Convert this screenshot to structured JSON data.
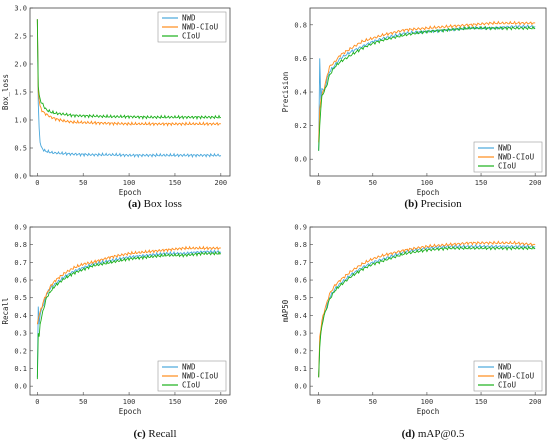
{
  "colors": {
    "NWD": "#4aa8dc",
    "NWD-CIoU": "#ff8c1a",
    "CIoU": "#1bb01b"
  },
  "chart_data": [
    {
      "type": "line",
      "caption_label": "(a)",
      "caption_text": " Box loss",
      "xlabel": "Epoch",
      "ylabel": "Box_loss",
      "xlim": [
        -8,
        210
      ],
      "ylim": [
        0,
        3.0
      ],
      "xticks": [
        "0",
        "50",
        "100",
        "150",
        "200"
      ],
      "yticks": [
        "0.0",
        "0.5",
        "1.0",
        "1.5",
        "2.0",
        "2.5",
        "3.0"
      ],
      "legend_position": "top-right",
      "series": [
        {
          "name": "NWD",
          "x": [
            0,
            1,
            2,
            3,
            4,
            6,
            8,
            10,
            15,
            20,
            30,
            40,
            60,
            80,
            100,
            120,
            150,
            180,
            200
          ],
          "y": [
            2.8,
            1.3,
            0.85,
            0.6,
            0.52,
            0.48,
            0.45,
            0.44,
            0.42,
            0.41,
            0.4,
            0.39,
            0.38,
            0.38,
            0.37,
            0.37,
            0.37,
            0.37,
            0.37
          ]
        },
        {
          "name": "NWD-CIoU",
          "x": [
            0,
            1,
            2,
            3,
            4,
            6,
            8,
            10,
            15,
            20,
            30,
            40,
            60,
            80,
            100,
            120,
            150,
            180,
            200
          ],
          "y": [
            2.8,
            1.5,
            1.35,
            1.25,
            1.2,
            1.15,
            1.12,
            1.1,
            1.05,
            1.02,
            0.98,
            0.96,
            0.95,
            0.94,
            0.93,
            0.93,
            0.93,
            0.93,
            0.93
          ]
        },
        {
          "name": "CIoU",
          "x": [
            0,
            1,
            2,
            3,
            4,
            6,
            8,
            10,
            15,
            20,
            30,
            40,
            60,
            80,
            100,
            120,
            150,
            180,
            200
          ],
          "y": [
            2.8,
            1.6,
            1.45,
            1.38,
            1.32,
            1.28,
            1.22,
            1.18,
            1.14,
            1.12,
            1.1,
            1.08,
            1.07,
            1.06,
            1.06,
            1.05,
            1.05,
            1.05,
            1.05
          ]
        }
      ]
    },
    {
      "type": "line",
      "caption_label": "(b)",
      "caption_text": " Precision",
      "xlabel": "Epoch",
      "ylabel": "Precision",
      "xlim": [
        -8,
        210
      ],
      "ylim": [
        -0.1,
        0.9
      ],
      "xticks": [
        "0",
        "50",
        "100",
        "150",
        "200"
      ],
      "yticks": [
        "0.0",
        "0.2",
        "0.4",
        "0.6",
        "0.8"
      ],
      "legend_position": "bottom-right",
      "series": [
        {
          "name": "NWD",
          "x": [
            0,
            1,
            2,
            3,
            5,
            8,
            10,
            15,
            20,
            30,
            40,
            50,
            60,
            80,
            100,
            120,
            140,
            160,
            180,
            200
          ],
          "y": [
            0.05,
            0.6,
            0.35,
            0.42,
            0.4,
            0.48,
            0.52,
            0.56,
            0.6,
            0.64,
            0.67,
            0.7,
            0.72,
            0.75,
            0.76,
            0.77,
            0.78,
            0.78,
            0.79,
            0.79
          ]
        },
        {
          "name": "NWD-CIoU",
          "x": [
            0,
            1,
            2,
            3,
            5,
            8,
            10,
            15,
            20,
            30,
            40,
            50,
            60,
            80,
            100,
            120,
            140,
            160,
            180,
            200
          ],
          "y": [
            0.1,
            0.3,
            0.35,
            0.38,
            0.42,
            0.5,
            0.55,
            0.58,
            0.62,
            0.66,
            0.7,
            0.72,
            0.74,
            0.77,
            0.78,
            0.79,
            0.8,
            0.81,
            0.81,
            0.81
          ]
        },
        {
          "name": "CIoU",
          "x": [
            0,
            1,
            2,
            3,
            5,
            8,
            10,
            15,
            20,
            30,
            40,
            50,
            60,
            80,
            100,
            120,
            140,
            160,
            180,
            200
          ],
          "y": [
            0.05,
            0.2,
            0.3,
            0.38,
            0.4,
            0.45,
            0.5,
            0.55,
            0.58,
            0.62,
            0.66,
            0.69,
            0.71,
            0.74,
            0.76,
            0.77,
            0.78,
            0.78,
            0.78,
            0.78
          ]
        }
      ]
    },
    {
      "type": "line",
      "caption_label": "(c)",
      "caption_text": " Recall",
      "xlabel": "Epoch",
      "ylabel": "Recall",
      "xlim": [
        -8,
        210
      ],
      "ylim": [
        -0.05,
        0.9
      ],
      "xticks": [
        "0",
        "50",
        "100",
        "150",
        "200"
      ],
      "yticks": [
        "0.0",
        "0.1",
        "0.2",
        "0.3",
        "0.4",
        "0.5",
        "0.6",
        "0.7",
        "0.8",
        "0.9"
      ],
      "legend_position": "bottom-right",
      "series": [
        {
          "name": "NWD",
          "x": [
            0,
            1,
            2,
            3,
            5,
            8,
            10,
            15,
            20,
            30,
            40,
            50,
            60,
            80,
            100,
            120,
            140,
            160,
            180,
            200
          ],
          "y": [
            0.05,
            0.45,
            0.35,
            0.4,
            0.44,
            0.48,
            0.52,
            0.56,
            0.58,
            0.62,
            0.65,
            0.67,
            0.69,
            0.71,
            0.73,
            0.74,
            0.75,
            0.75,
            0.76,
            0.76
          ]
        },
        {
          "name": "NWD-CIoU",
          "x": [
            0,
            1,
            2,
            3,
            5,
            8,
            10,
            15,
            20,
            30,
            40,
            50,
            60,
            80,
            100,
            120,
            140,
            160,
            180,
            200
          ],
          "y": [
            0.35,
            0.38,
            0.4,
            0.42,
            0.45,
            0.5,
            0.52,
            0.57,
            0.6,
            0.64,
            0.67,
            0.69,
            0.7,
            0.73,
            0.75,
            0.76,
            0.77,
            0.78,
            0.78,
            0.78
          ]
        },
        {
          "name": "CIoU",
          "x": [
            0,
            1,
            2,
            3,
            5,
            8,
            10,
            15,
            20,
            30,
            40,
            50,
            60,
            80,
            100,
            120,
            140,
            160,
            180,
            200
          ],
          "y": [
            0.04,
            0.3,
            0.28,
            0.35,
            0.4,
            0.46,
            0.5,
            0.54,
            0.57,
            0.61,
            0.64,
            0.66,
            0.68,
            0.7,
            0.72,
            0.73,
            0.74,
            0.74,
            0.75,
            0.75
          ]
        }
      ]
    },
    {
      "type": "line",
      "caption_label": "(d)",
      "caption_text": " mAP@0.5",
      "xlabel": "Epoch",
      "ylabel": "mAP50",
      "xlim": [
        -8,
        210
      ],
      "ylim": [
        -0.05,
        0.9
      ],
      "xticks": [
        "0",
        "50",
        "100",
        "150",
        "200"
      ],
      "yticks": [
        "0.0",
        "0.1",
        "0.2",
        "0.3",
        "0.4",
        "0.5",
        "0.6",
        "0.7",
        "0.8",
        "0.9"
      ],
      "legend_position": "bottom-right",
      "series": [
        {
          "name": "NWD",
          "x": [
            0,
            1,
            2,
            3,
            5,
            8,
            10,
            15,
            20,
            30,
            40,
            50,
            60,
            80,
            100,
            120,
            140,
            160,
            180,
            200
          ],
          "y": [
            0.05,
            0.25,
            0.3,
            0.35,
            0.4,
            0.46,
            0.5,
            0.55,
            0.58,
            0.63,
            0.67,
            0.7,
            0.72,
            0.76,
            0.78,
            0.79,
            0.79,
            0.79,
            0.79,
            0.79
          ]
        },
        {
          "name": "NWD-CIoU",
          "x": [
            0,
            1,
            2,
            3,
            5,
            8,
            10,
            15,
            20,
            30,
            40,
            50,
            60,
            80,
            100,
            120,
            140,
            160,
            180,
            200
          ],
          "y": [
            0.05,
            0.28,
            0.32,
            0.37,
            0.42,
            0.48,
            0.52,
            0.57,
            0.6,
            0.65,
            0.69,
            0.72,
            0.74,
            0.77,
            0.79,
            0.8,
            0.81,
            0.81,
            0.81,
            0.8
          ]
        },
        {
          "name": "CIoU",
          "x": [
            0,
            1,
            2,
            3,
            5,
            8,
            10,
            15,
            20,
            30,
            40,
            50,
            60,
            80,
            100,
            120,
            140,
            160,
            180,
            200
          ],
          "y": [
            0.05,
            0.22,
            0.3,
            0.34,
            0.4,
            0.45,
            0.49,
            0.54,
            0.57,
            0.62,
            0.66,
            0.69,
            0.71,
            0.75,
            0.77,
            0.78,
            0.78,
            0.78,
            0.78,
            0.78
          ]
        }
      ]
    }
  ]
}
